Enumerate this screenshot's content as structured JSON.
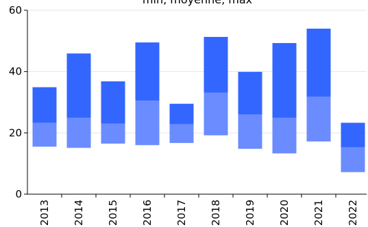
{
  "chart_data": {
    "type": "bar",
    "title": "min, moyenne, max",
    "xlabel": "",
    "ylabel": "",
    "categories": [
      "2013",
      "2014",
      "2015",
      "2016",
      "2017",
      "2018",
      "2019",
      "2020",
      "2021",
      "2022"
    ],
    "series": [
      {
        "min": 15.5,
        "moyenne": 23.3,
        "max": 34.9
      },
      {
        "min": 15.1,
        "moyenne": 24.9,
        "max": 45.9
      },
      {
        "min": 16.5,
        "moyenne": 23.0,
        "max": 36.8
      },
      {
        "min": 16.0,
        "moyenne": 30.5,
        "max": 49.5
      },
      {
        "min": 16.7,
        "moyenne": 22.8,
        "max": 29.5
      },
      {
        "min": 19.2,
        "moyenne": 33.1,
        "max": 51.3
      },
      {
        "min": 14.8,
        "moyenne": 26.0,
        "max": 39.9
      },
      {
        "min": 13.3,
        "moyenne": 24.9,
        "max": 49.3
      },
      {
        "min": 17.2,
        "moyenne": 31.8,
        "max": 54.0
      },
      {
        "min": 7.2,
        "moyenne": 15.3,
        "max": 23.3
      }
    ],
    "ylim": [
      0,
      60
    ],
    "yticks": [
      "0",
      "20",
      "40",
      "60"
    ],
    "grid": true,
    "colors": {
      "lower_band": "#6b8cff",
      "upper_band": "#3366ff",
      "grid": "#e6e6e6",
      "axis": "#000000"
    }
  }
}
